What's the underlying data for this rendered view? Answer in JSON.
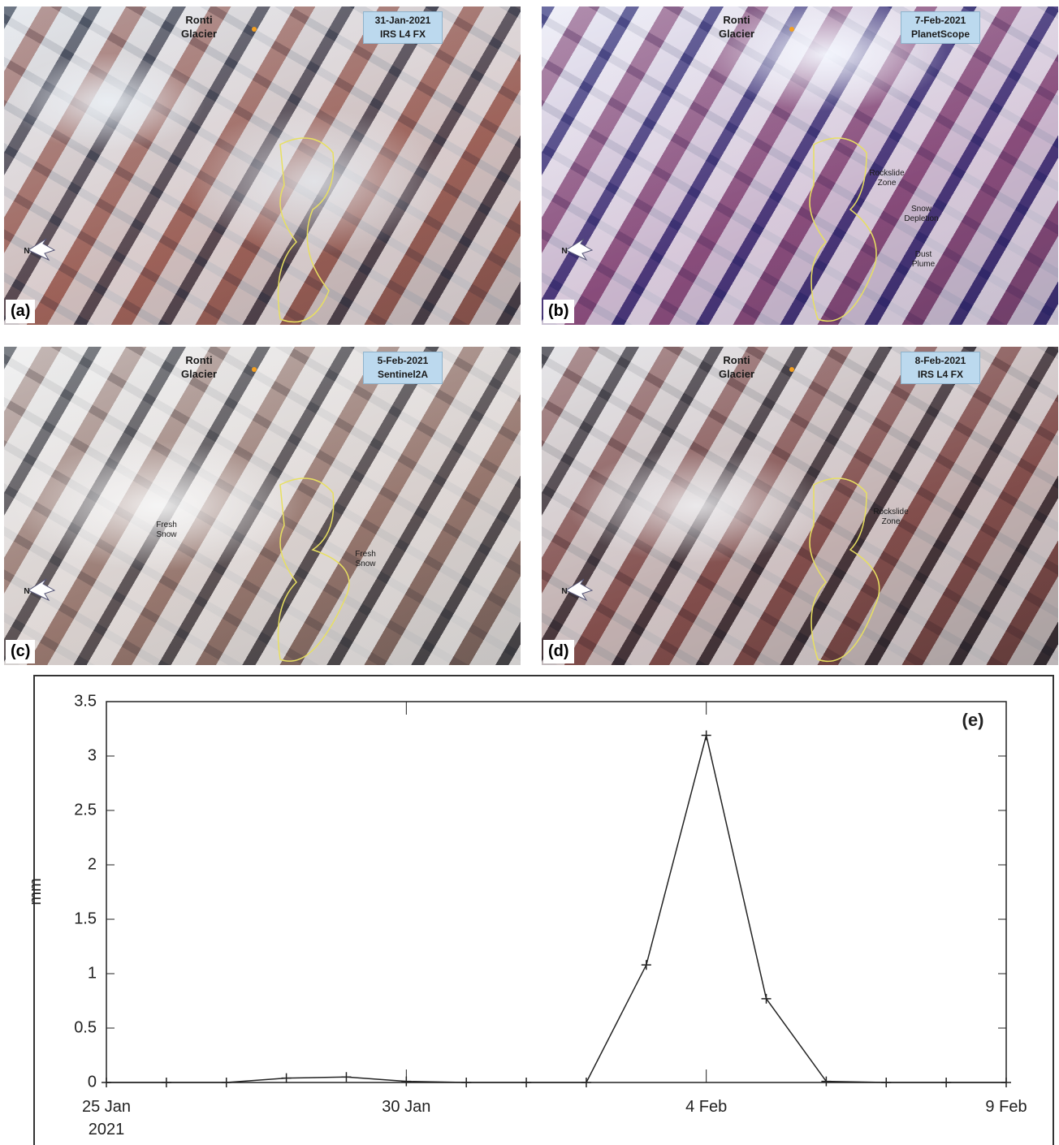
{
  "panels": [
    {
      "label": "(a)",
      "date": "31-Jan-2021",
      "sensor": "IRS L4 FX",
      "glacier": "Ronti Glacier",
      "north": "N",
      "annotations": []
    },
    {
      "label": "(b)",
      "date": "7-Feb-2021",
      "sensor": "PlanetScope",
      "glacier": "Ronti Glacier",
      "north": "N",
      "annotations": [
        "Rockslide Zone",
        "Snow Depletion",
        "Dust Plume"
      ]
    },
    {
      "label": "(c)",
      "date": "5-Feb-2021",
      "sensor": "Sentinel2A",
      "glacier": "Ronti Glacier",
      "north": "N",
      "annotations": [
        "Fresh Snow",
        "Fresh Snow"
      ]
    },
    {
      "label": "(d)",
      "date": "8-Feb-2021",
      "sensor": "IRS L4 FX",
      "glacier": "Ronti Glacier",
      "north": "N",
      "annotations": [
        "Rockslide Zone"
      ]
    }
  ],
  "chart_data": {
    "type": "line",
    "panel_label": "(e)",
    "ylabel": "mm",
    "color": "#222222",
    "x": [
      "2021-01-25",
      "2021-01-26",
      "2021-01-27",
      "2021-01-28",
      "2021-01-29",
      "2021-01-30",
      "2021-01-31",
      "2021-02-01",
      "2021-02-02",
      "2021-02-03",
      "2021-02-04",
      "2021-02-05",
      "2021-02-06",
      "2021-02-07",
      "2021-02-08",
      "2021-02-09"
    ],
    "values": [
      0,
      0,
      0,
      0.04,
      0.05,
      0.01,
      0,
      0,
      0,
      1.08,
      3.19,
      0.77,
      0.01,
      0,
      0,
      0
    ],
    "xlim": [
      "2021-01-25",
      "2021-02-09"
    ],
    "xticks": [
      {
        "value": "2021-01-25",
        "label": "25 Jan 2021"
      },
      {
        "value": "2021-01-30",
        "label": "30 Jan"
      },
      {
        "value": "2021-02-04",
        "label": "4 Feb"
      },
      {
        "value": "2021-02-09",
        "label": "9 Feb"
      }
    ],
    "ylim": [
      0,
      3.5
    ],
    "yticks": [
      0,
      0.5,
      1,
      1.5,
      2,
      2.5,
      3,
      3.5
    ]
  }
}
